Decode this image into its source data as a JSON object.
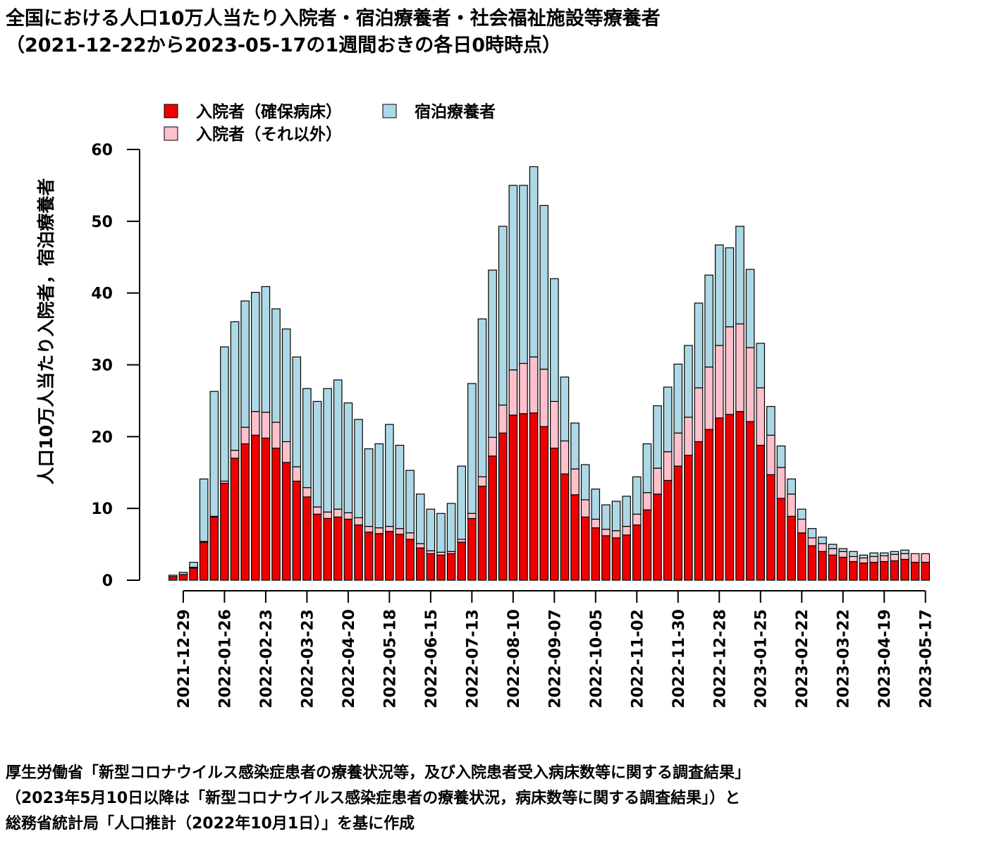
{
  "title": {
    "line1": "全国における人口10万人当たり入院者・宿泊療養者・社会福祉施設等療養者",
    "line2": "（2021-12-22から2023-05-17の1週間おきの各日0時時点）"
  },
  "source": {
    "line1": "厚生労働省「新型コロナウイルス感染症患者の療養状況等，及び入院患者受入病床数等に関する調査結果」",
    "line2": "（2023年5月10日以降は「新型コロナウイルス感染症患者の療養状況，病床数等に関する調査結果」）と",
    "line3": "総務省統計局「人口推計（2022年10月1日）」を基に作成"
  },
  "chart_data": {
    "type": "bar",
    "stacked": true,
    "ylabel": "人口10万人当たり入院者，宿泊療養者",
    "ylim": [
      0,
      60
    ],
    "yticks": [
      0,
      10,
      20,
      30,
      40,
      50,
      60
    ],
    "legend_position": "top-left",
    "x": [
      "2021-12-22",
      "2021-12-29",
      "2022-01-05",
      "2022-01-12",
      "2022-01-19",
      "2022-01-26",
      "2022-02-02",
      "2022-02-09",
      "2022-02-16",
      "2022-02-23",
      "2022-03-02",
      "2022-03-09",
      "2022-03-16",
      "2022-03-23",
      "2022-03-30",
      "2022-04-06",
      "2022-04-13",
      "2022-04-20",
      "2022-04-27",
      "2022-05-04",
      "2022-05-11",
      "2022-05-18",
      "2022-05-25",
      "2022-06-01",
      "2022-06-08",
      "2022-06-15",
      "2022-06-22",
      "2022-06-29",
      "2022-07-06",
      "2022-07-13",
      "2022-07-20",
      "2022-07-27",
      "2022-08-03",
      "2022-08-10",
      "2022-08-17",
      "2022-08-24",
      "2022-08-31",
      "2022-09-07",
      "2022-09-14",
      "2022-09-21",
      "2022-09-28",
      "2022-10-05",
      "2022-10-12",
      "2022-10-19",
      "2022-10-26",
      "2022-11-02",
      "2022-11-09",
      "2022-11-16",
      "2022-11-23",
      "2022-11-30",
      "2022-12-07",
      "2022-12-14",
      "2022-12-21",
      "2022-12-28",
      "2023-01-04",
      "2023-01-11",
      "2023-01-18",
      "2023-01-25",
      "2023-02-01",
      "2023-02-08",
      "2023-02-15",
      "2023-02-22",
      "2023-03-01",
      "2023-03-08",
      "2023-03-15",
      "2023-03-22",
      "2023-03-29",
      "2023-04-05",
      "2023-04-12",
      "2023-04-19",
      "2023-04-26",
      "2023-05-03",
      "2023-05-10",
      "2023-05-17"
    ],
    "x_tick_labels": [
      "2021-12-29",
      "2022-01-26",
      "2022-02-23",
      "2022-03-23",
      "2022-04-20",
      "2022-05-18",
      "2022-06-15",
      "2022-07-13",
      "2022-08-10",
      "2022-09-07",
      "2022-10-05",
      "2022-11-02",
      "2022-11-30",
      "2022-12-28",
      "2023-01-25",
      "2023-02-22",
      "2023-03-22",
      "2023-04-19",
      "2023-05-17"
    ],
    "series": [
      {
        "name": "入院者（確保病床）",
        "color": "#ee0000",
        "values": [
          0.5,
          0.8,
          1.7,
          5.3,
          8.8,
          13.5,
          17.0,
          19.0,
          20.2,
          19.8,
          18.4,
          16.4,
          13.8,
          11.6,
          9.2,
          8.6,
          8.8,
          8.5,
          7.7,
          6.7,
          6.5,
          6.8,
          6.4,
          5.7,
          4.5,
          3.7,
          3.5,
          3.7,
          5.3,
          8.6,
          13.1,
          17.3,
          20.5,
          23.0,
          23.2,
          23.3,
          21.4,
          18.4,
          14.8,
          11.9,
          8.8,
          7.3,
          6.2,
          5.9,
          6.3,
          7.7,
          9.8,
          12.0,
          13.9,
          15.9,
          17.4,
          19.3,
          21.0,
          22.6,
          23.1,
          23.5,
          22.1,
          18.8,
          14.7,
          11.4,
          8.9,
          6.6,
          4.8,
          4.0,
          3.5,
          3.2,
          2.6,
          2.4,
          2.5,
          2.6,
          2.7,
          2.9,
          2.5,
          2.5
        ]
      },
      {
        "name": "入院者（それ以外）",
        "color": "#ffc0cb",
        "values": [
          0.0,
          0.0,
          0.1,
          0.1,
          0.1,
          0.3,
          1.1,
          2.3,
          3.3,
          3.6,
          3.6,
          2.9,
          2.0,
          1.3,
          1.0,
          0.9,
          1.1,
          0.9,
          1.0,
          0.8,
          0.8,
          0.7,
          0.8,
          0.9,
          0.6,
          0.4,
          0.4,
          0.3,
          0.4,
          0.7,
          1.3,
          2.6,
          3.9,
          6.3,
          7.0,
          7.8,
          8.0,
          6.5,
          4.6,
          3.6,
          2.4,
          1.2,
          0.9,
          1.0,
          1.2,
          1.5,
          2.4,
          3.6,
          4.0,
          4.6,
          5.3,
          7.5,
          8.7,
          10.1,
          12.2,
          12.2,
          10.3,
          8.0,
          5.5,
          4.3,
          3.1,
          1.9,
          1.1,
          1.1,
          0.9,
          0.8,
          0.7,
          0.7,
          0.8,
          0.8,
          0.9,
          0.8,
          1.2,
          1.2
        ]
      },
      {
        "name": "宿泊療養者",
        "color": "#add8e6",
        "values": [
          0.2,
          0.3,
          0.7,
          8.7,
          17.4,
          18.7,
          17.9,
          17.6,
          16.6,
          17.5,
          15.8,
          15.7,
          15.3,
          13.8,
          14.7,
          17.2,
          18.0,
          15.3,
          13.7,
          10.8,
          11.7,
          14.2,
          11.6,
          8.7,
          6.9,
          5.8,
          5.4,
          6.7,
          10.2,
          18.1,
          22.0,
          23.3,
          24.9,
          25.7,
          24.8,
          26.5,
          22.8,
          17.1,
          8.9,
          6.4,
          4.9,
          4.2,
          3.4,
          4.1,
          4.2,
          5.2,
          6.8,
          8.7,
          9.0,
          9.6,
          10.0,
          11.8,
          12.8,
          14.0,
          11.0,
          13.6,
          10.9,
          6.2,
          4.0,
          3.0,
          2.1,
          1.4,
          1.3,
          0.9,
          0.6,
          0.4,
          0.7,
          0.4,
          0.5,
          0.4,
          0.4,
          0.5,
          0.0,
          0.0
        ]
      }
    ]
  }
}
